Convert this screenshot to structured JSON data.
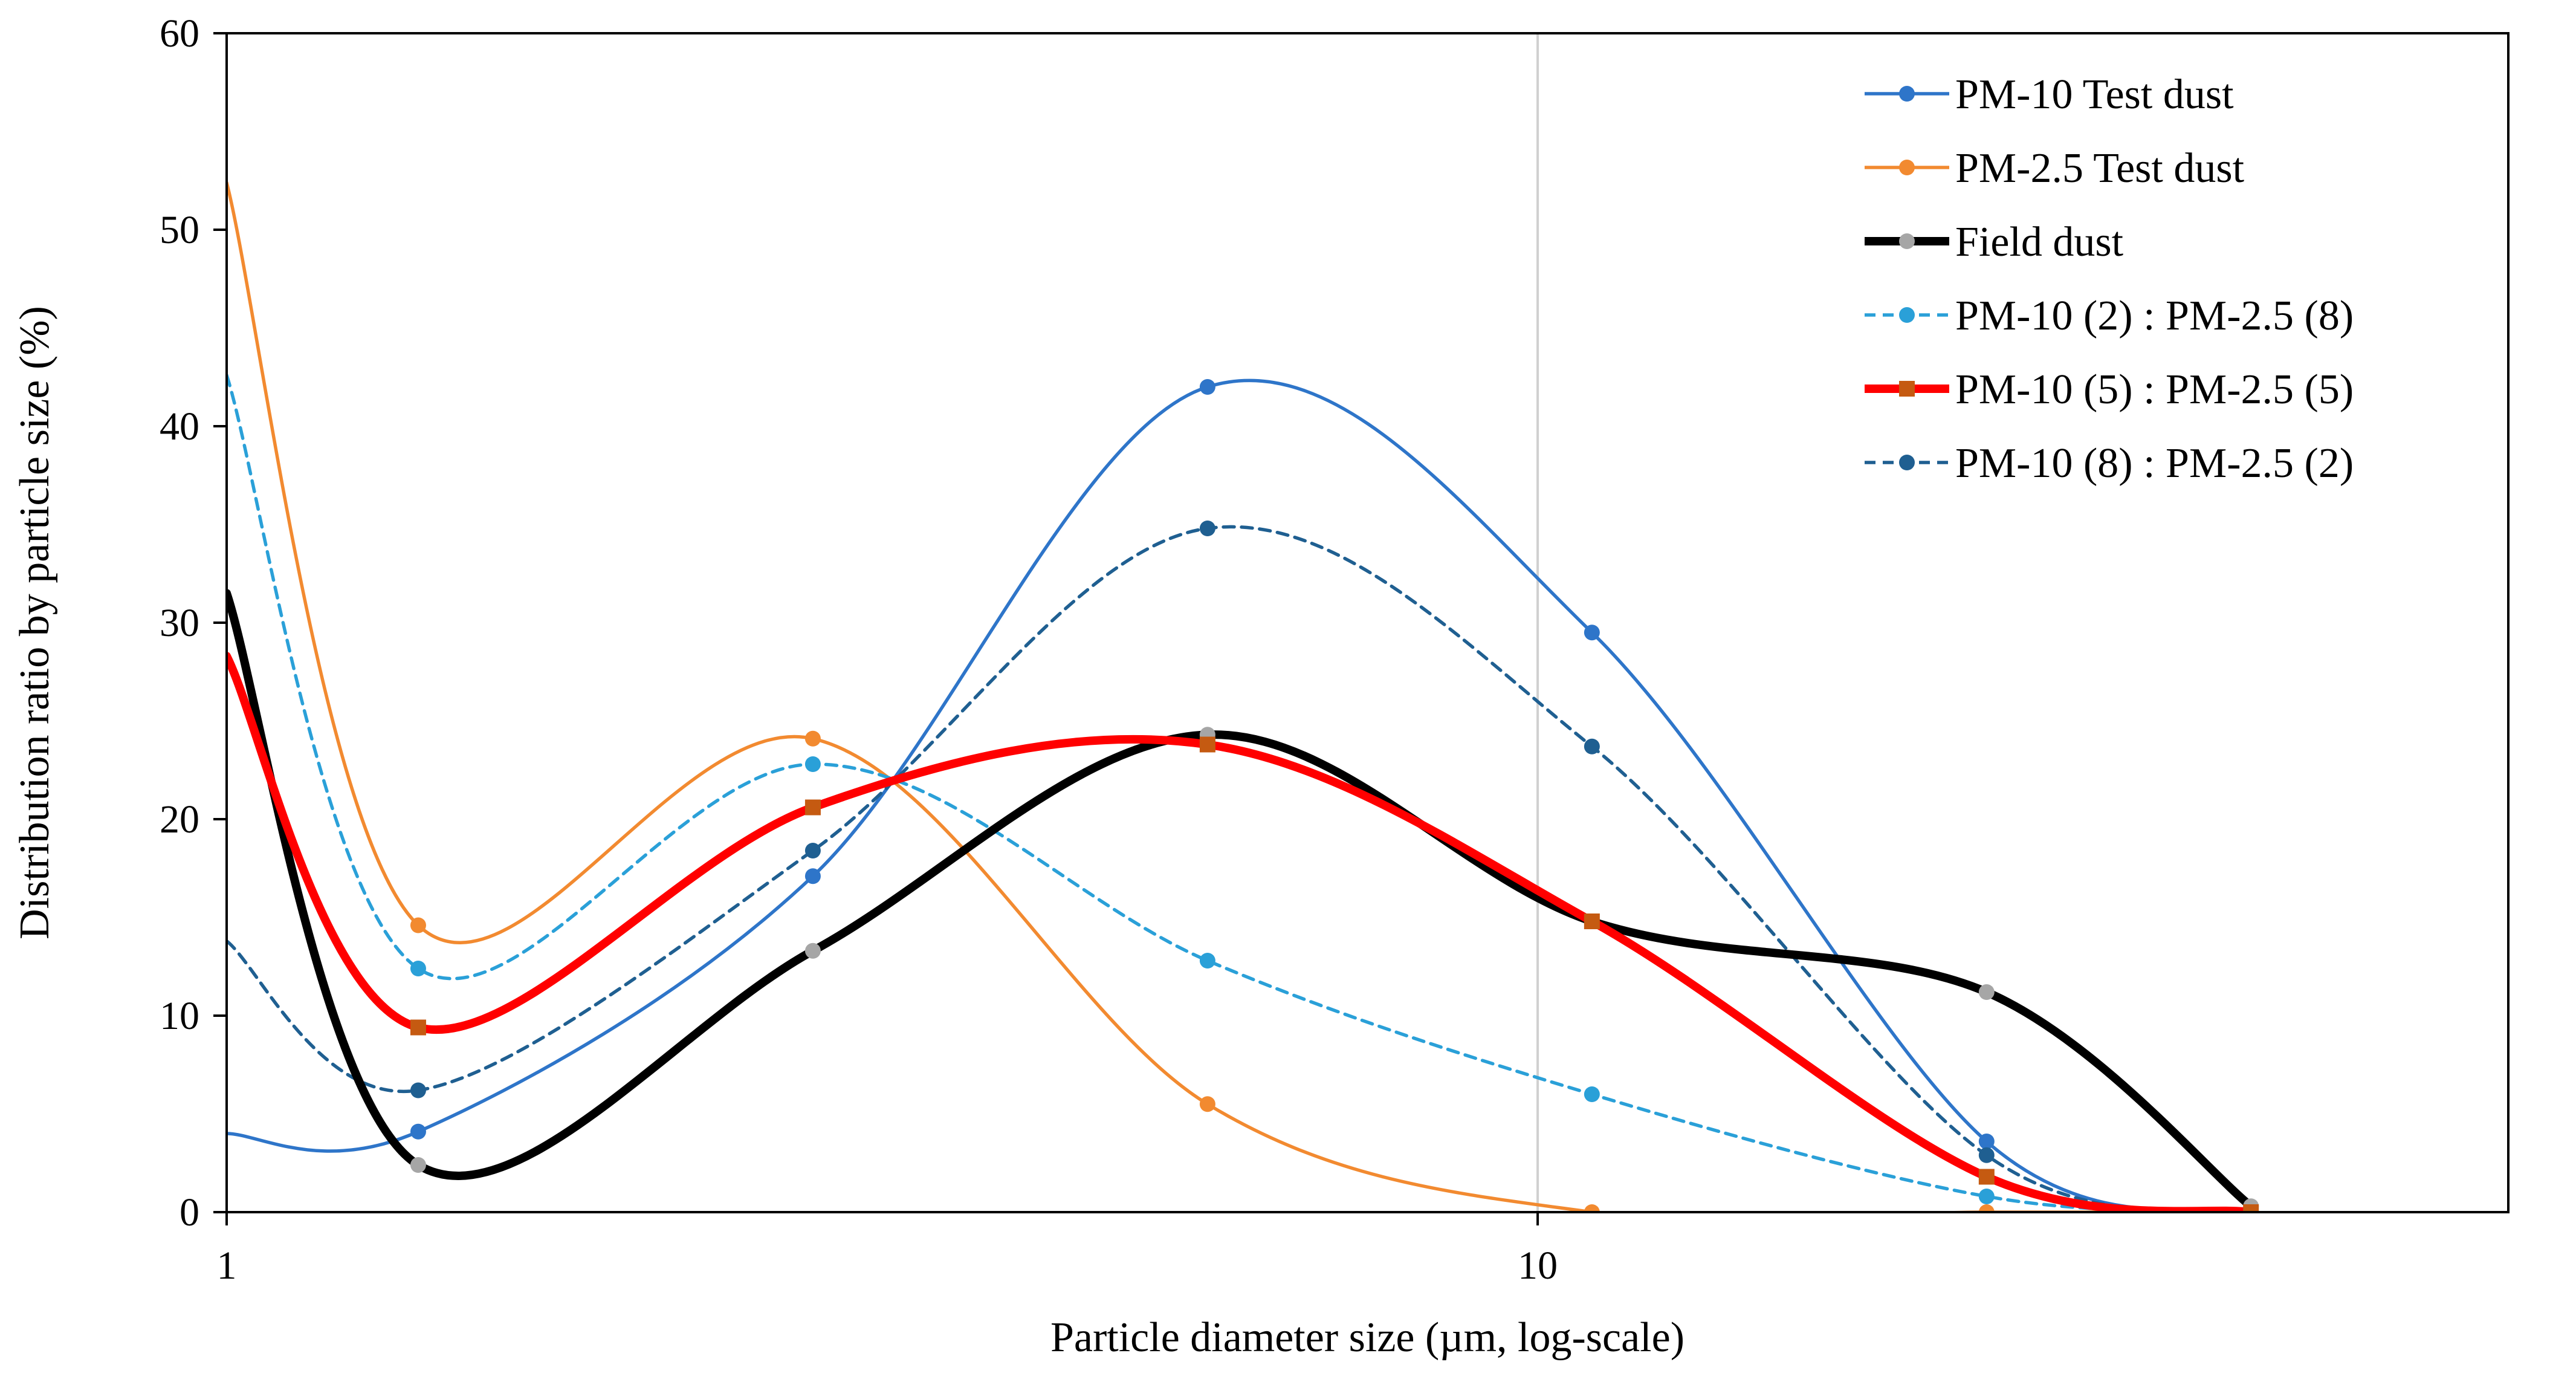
{
  "chart_data": {
    "type": "line",
    "title": "",
    "xlabel": "Particle diameter size (µm, log-scale)",
    "ylabel": "Distribution ratio by particle size (%)",
    "x_scale": "log",
    "xlim": [
      1,
      55
    ],
    "ylim": [
      0,
      60
    ],
    "y_ticks": [
      0,
      10,
      20,
      30,
      40,
      50,
      60
    ],
    "y_tick_labels": [
      "0",
      "10",
      "20",
      "30",
      "40",
      "50",
      "60"
    ],
    "x_ticks": [
      1,
      10
    ],
    "x_tick_labels": [
      "1",
      "10"
    ],
    "x_gridlines": [
      10
    ],
    "legend_position": "top-right",
    "x": [
      1.4,
      2.8,
      5.6,
      11.0,
      22.0,
      35.0
    ],
    "series": [
      {
        "name": "PM-10 Test dust",
        "color": "#2e75c9",
        "dash": false,
        "marker": "circle",
        "start": 4.0,
        "values": [
          4.1,
          17.1,
          42.0,
          29.5,
          3.6,
          0.0
        ]
      },
      {
        "name": "PM-2.5 Test dust",
        "color": "#f28a30",
        "dash": false,
        "marker": "circle",
        "start": 52.4,
        "values": [
          14.6,
          24.1,
          5.5,
          0.0,
          0.0,
          0.0
        ]
      },
      {
        "name": "Field dust",
        "color": "#000000",
        "dash": false,
        "marker": "circle",
        "marker_color": "#a6a6a6",
        "start": 31.5,
        "values": [
          2.4,
          13.3,
          24.3,
          14.8,
          11.2,
          0.3
        ]
      },
      {
        "name": "PM-10 (2) : PM-2.5 (8)",
        "color": "#2aa0d8",
        "dash": true,
        "marker": "circle",
        "start": 42.6,
        "values": [
          12.4,
          22.8,
          12.8,
          6.0,
          0.8,
          0.0
        ]
      },
      {
        "name": "PM-10 (5) : PM-2.5 (5)",
        "color": "#ff0000",
        "dash": false,
        "marker": "square",
        "marker_color": "#c55a11",
        "start": 28.3,
        "values": [
          9.4,
          20.6,
          23.8,
          14.8,
          1.8,
          0.0
        ]
      },
      {
        "name": "PM-10 (8) : PM-2.5 (2)",
        "color": "#1f5f91",
        "dash": true,
        "marker": "circle",
        "start": 13.8,
        "values": [
          6.2,
          18.4,
          34.8,
          23.7,
          2.9,
          0.0
        ]
      }
    ]
  }
}
